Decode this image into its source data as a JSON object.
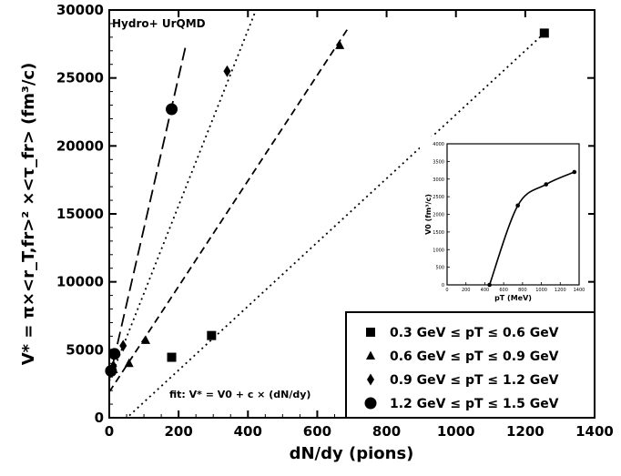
{
  "chart_data": [
    {
      "type": "scatter",
      "annotation": "Hydro+ UrQMD",
      "fit_text": "fit: V* = V0 + c × (dN/dy)",
      "xlabel": "dN/dy (pions)",
      "ylabel": "V* = π×<r_T,fr>² ×<τ_fr> (fm³/c)",
      "xlim": [
        0,
        1400
      ],
      "ylim": [
        0,
        30000
      ],
      "xticks": [
        0,
        200,
        400,
        600,
        800,
        1000,
        1200,
        1400
      ],
      "yticks": [
        0,
        5000,
        10000,
        15000,
        20000,
        25000,
        30000
      ],
      "legend_position": "bottom-right",
      "series": [
        {
          "name": "0.3 GeV ≤ pT ≤ 0.6 GeV",
          "marker": "square",
          "line": "dotted",
          "points": [
            [
              180,
              4450
            ],
            [
              295,
              6050
            ],
            [
              1255,
              28300
            ]
          ],
          "fit": [
            [
              0,
              -1200
            ],
            [
              1255,
              28300
            ]
          ]
        },
        {
          "name": "0.6 GeV ≤ pT ≤ 0.9 GeV",
          "marker": "triangle",
          "line": "dashed",
          "points": [
            [
              12,
              3550
            ],
            [
              57,
              4000
            ],
            [
              105,
              5700
            ],
            [
              665,
              27400
            ]
          ],
          "fit": [
            [
              0,
              1900
            ],
            [
              690,
              28700
            ]
          ]
        },
        {
          "name": "0.9 GeV ≤ pT ≤ 1.2 GeV",
          "marker": "diamond",
          "line": "dotted",
          "points": [
            [
              12,
              3800
            ],
            [
              40,
              5300
            ],
            [
              340,
              25500
            ]
          ],
          "fit": [
            [
              0,
              2700
            ],
            [
              420,
              29800
            ]
          ]
        },
        {
          "name": "1.2 GeV ≤ pT ≤ 1.5 GeV",
          "marker": "circle",
          "line": "longdash",
          "points": [
            [
              5,
              3450
            ],
            [
              15,
              4700
            ],
            [
              180,
              22700
            ]
          ],
          "fit": [
            [
              0,
              2800
            ],
            [
              220,
              27300
            ]
          ]
        }
      ]
    },
    {
      "type": "line",
      "xlabel": "pT (MeV)",
      "ylabel": "V0 (fm³/c)",
      "xlim": [
        0,
        1400
      ],
      "ylim": [
        0,
        4000
      ],
      "xticks": [
        0,
        200,
        400,
        600,
        800,
        1000,
        1200,
        1400
      ],
      "yticks": [
        0,
        500,
        1000,
        1500,
        2000,
        2500,
        3000,
        3500,
        4000
      ],
      "series": [
        {
          "marker": "circle",
          "points": [
            [
              450,
              0
            ],
            [
              750,
              2250
            ],
            [
              1050,
              2850
            ],
            [
              1350,
              3200
            ]
          ]
        }
      ]
    }
  ]
}
